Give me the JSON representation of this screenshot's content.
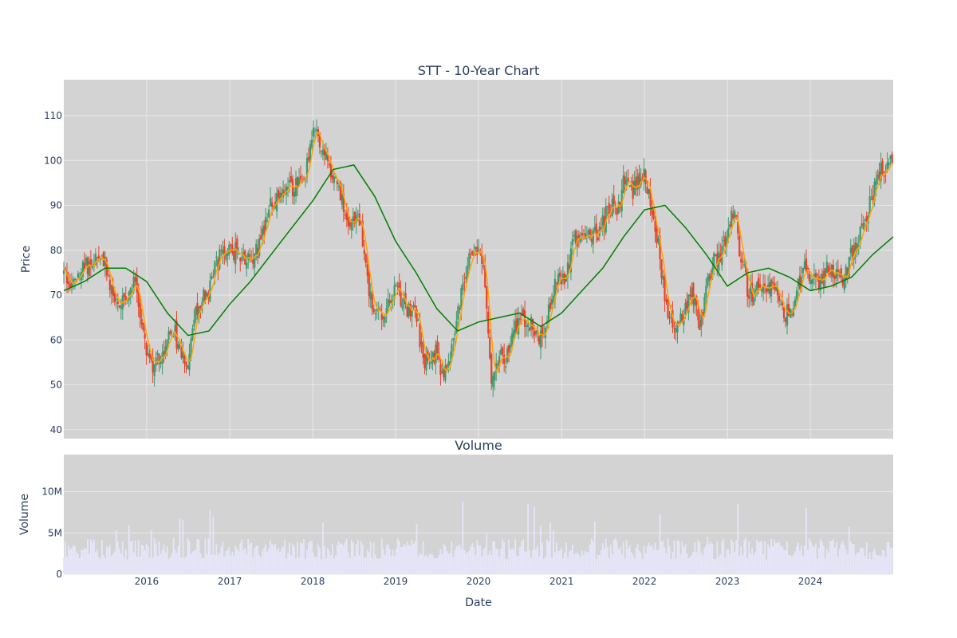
{
  "chart_data": {
    "type": "candlestick",
    "title": "STT - 10-Year Chart",
    "subplot_titles": [
      "",
      "Volume"
    ],
    "xlabel": "Date",
    "price_ylabel": "Price",
    "volume_ylabel": "Volume",
    "x_range": [
      "2015-01-01",
      "2024-12-31"
    ],
    "price_ylim": [
      38,
      118
    ],
    "volume_ylim": [
      0,
      14500000
    ],
    "x_ticks": [
      "2016",
      "2017",
      "2018",
      "2019",
      "2020",
      "2021",
      "2022",
      "2023",
      "2024"
    ],
    "price_ticks": [
      40,
      50,
      60,
      70,
      80,
      90,
      100,
      110
    ],
    "volume_ticks": [
      {
        "value": 0,
        "label": "0"
      },
      {
        "value": 5000000,
        "label": "5M"
      },
      {
        "value": 10000000,
        "label": "10M"
      }
    ],
    "grid": true,
    "colors": {
      "plot_bg": "#d3d3d3",
      "grid": "#e8e8e8",
      "up": "#3d9970",
      "down": "#e8412b",
      "ma_short": "#ffa500",
      "ma_long": "#008000",
      "volume": "#e6e6fa",
      "text": "#2a3f5f"
    },
    "series": [
      {
        "name": "close",
        "points": [
          [
            "2015-01-01",
            75
          ],
          [
            "2015-02-01",
            73
          ],
          [
            "2015-03-01",
            75
          ],
          [
            "2015-04-01",
            76
          ],
          [
            "2015-05-01",
            77
          ],
          [
            "2015-06-01",
            79
          ],
          [
            "2015-07-01",
            78
          ],
          [
            "2015-08-01",
            71
          ],
          [
            "2015-09-01",
            68
          ],
          [
            "2015-10-01",
            70
          ],
          [
            "2015-11-01",
            73
          ],
          [
            "2015-12-01",
            67
          ],
          [
            "2016-01-01",
            57
          ],
          [
            "2016-02-01",
            54
          ],
          [
            "2016-03-01",
            57
          ],
          [
            "2016-04-01",
            60
          ],
          [
            "2016-05-01",
            62
          ],
          [
            "2016-06-01",
            55
          ],
          [
            "2016-07-01",
            55
          ],
          [
            "2016-08-01",
            67
          ],
          [
            "2016-09-01",
            69
          ],
          [
            "2016-10-01",
            70
          ],
          [
            "2016-11-01",
            77
          ],
          [
            "2016-12-01",
            79
          ],
          [
            "2017-01-01",
            80
          ],
          [
            "2017-02-01",
            80
          ],
          [
            "2017-03-01",
            79
          ],
          [
            "2017-04-01",
            78
          ],
          [
            "2017-05-01",
            80
          ],
          [
            "2017-06-01",
            84
          ],
          [
            "2017-07-01",
            90
          ],
          [
            "2017-08-01",
            92
          ],
          [
            "2017-09-01",
            95
          ],
          [
            "2017-10-01",
            93
          ],
          [
            "2017-11-01",
            96
          ],
          [
            "2017-12-01",
            98
          ],
          [
            "2018-01-01",
            108
          ],
          [
            "2018-02-01",
            104
          ],
          [
            "2018-03-01",
            100
          ],
          [
            "2018-04-01",
            96
          ],
          [
            "2018-05-01",
            93
          ],
          [
            "2018-06-01",
            88
          ],
          [
            "2018-07-01",
            86
          ],
          [
            "2018-08-01",
            86
          ],
          [
            "2018-09-01",
            72
          ],
          [
            "2018-10-01",
            67
          ],
          [
            "2018-11-01",
            65
          ],
          [
            "2018-12-01",
            70
          ],
          [
            "2019-01-01",
            71
          ],
          [
            "2019-02-01",
            68
          ],
          [
            "2019-03-01",
            66
          ],
          [
            "2019-04-01",
            66
          ],
          [
            "2019-05-01",
            56
          ],
          [
            "2019-06-01",
            55
          ],
          [
            "2019-07-01",
            57
          ],
          [
            "2019-08-01",
            51
          ],
          [
            "2019-09-01",
            58
          ],
          [
            "2019-10-01",
            66
          ],
          [
            "2019-11-01",
            74
          ],
          [
            "2019-12-01",
            79
          ],
          [
            "2020-01-01",
            80
          ],
          [
            "2020-02-01",
            73
          ],
          [
            "2020-03-01",
            50
          ],
          [
            "2020-04-01",
            58
          ],
          [
            "2020-05-01",
            56
          ],
          [
            "2020-06-01",
            62
          ],
          [
            "2020-07-01",
            65
          ],
          [
            "2020-08-01",
            65
          ],
          [
            "2020-09-01",
            63
          ],
          [
            "2020-10-01",
            60
          ],
          [
            "2020-11-01",
            66
          ],
          [
            "2020-12-01",
            72
          ],
          [
            "2021-01-01",
            73
          ],
          [
            "2021-02-01",
            76
          ],
          [
            "2021-03-01",
            83
          ],
          [
            "2021-04-01",
            84
          ],
          [
            "2021-05-01",
            84
          ],
          [
            "2021-06-01",
            83
          ],
          [
            "2021-07-01",
            86
          ],
          [
            "2021-08-01",
            90
          ],
          [
            "2021-09-01",
            88
          ],
          [
            "2021-10-01",
            95
          ],
          [
            "2021-11-01",
            93
          ],
          [
            "2021-12-01",
            95
          ],
          [
            "2022-01-01",
            97
          ],
          [
            "2022-02-01",
            88
          ],
          [
            "2022-03-01",
            82
          ],
          [
            "2022-04-01",
            69
          ],
          [
            "2022-05-01",
            65
          ],
          [
            "2022-06-01",
            63
          ],
          [
            "2022-07-01",
            68
          ],
          [
            "2022-08-01",
            70
          ],
          [
            "2022-09-01",
            62
          ],
          [
            "2022-10-01",
            72
          ],
          [
            "2022-11-01",
            78
          ],
          [
            "2022-12-01",
            78
          ],
          [
            "2023-01-01",
            83
          ],
          [
            "2023-02-01",
            90
          ],
          [
            "2023-03-01",
            78
          ],
          [
            "2023-04-01",
            71
          ],
          [
            "2023-05-01",
            70
          ],
          [
            "2023-06-01",
            73
          ],
          [
            "2023-07-01",
            72
          ],
          [
            "2023-08-01",
            70
          ],
          [
            "2023-09-01",
            66
          ],
          [
            "2023-10-01",
            66
          ],
          [
            "2023-11-01",
            70
          ],
          [
            "2023-12-01",
            77
          ],
          [
            "2024-01-01",
            75
          ],
          [
            "2024-02-01",
            73
          ],
          [
            "2024-03-01",
            75
          ],
          [
            "2024-04-01",
            76
          ],
          [
            "2024-05-01",
            74
          ],
          [
            "2024-06-01",
            73
          ],
          [
            "2024-07-01",
            80
          ],
          [
            "2024-08-01",
            83
          ],
          [
            "2024-09-01",
            87
          ],
          [
            "2024-10-01",
            92
          ],
          [
            "2024-11-01",
            97
          ],
          [
            "2024-12-01",
            99
          ]
        ]
      },
      {
        "name": "ma_long",
        "points": [
          [
            "2015-01-01",
            71
          ],
          [
            "2015-04-01",
            73
          ],
          [
            "2015-07-01",
            76
          ],
          [
            "2015-10-01",
            76
          ],
          [
            "2016-01-01",
            73
          ],
          [
            "2016-04-01",
            66
          ],
          [
            "2016-07-01",
            61
          ],
          [
            "2016-10-01",
            62
          ],
          [
            "2017-01-01",
            68
          ],
          [
            "2017-04-01",
            73
          ],
          [
            "2017-07-01",
            79
          ],
          [
            "2017-10-01",
            85
          ],
          [
            "2018-01-01",
            91
          ],
          [
            "2018-04-01",
            98
          ],
          [
            "2018-07-01",
            99
          ],
          [
            "2018-10-01",
            92
          ],
          [
            "2019-01-01",
            82
          ],
          [
            "2019-04-01",
            75
          ],
          [
            "2019-07-01",
            67
          ],
          [
            "2019-10-01",
            62
          ],
          [
            "2020-01-01",
            64
          ],
          [
            "2020-04-01",
            65
          ],
          [
            "2020-07-01",
            66
          ],
          [
            "2020-10-01",
            63
          ],
          [
            "2021-01-01",
            66
          ],
          [
            "2021-04-01",
            71
          ],
          [
            "2021-07-01",
            76
          ],
          [
            "2021-10-01",
            83
          ],
          [
            "2022-01-01",
            89
          ],
          [
            "2022-04-01",
            90
          ],
          [
            "2022-07-01",
            85
          ],
          [
            "2022-10-01",
            79
          ],
          [
            "2023-01-01",
            72
          ],
          [
            "2023-04-01",
            75
          ],
          [
            "2023-07-01",
            76
          ],
          [
            "2023-10-01",
            74
          ],
          [
            "2024-01-01",
            71
          ],
          [
            "2024-04-01",
            72
          ],
          [
            "2024-07-01",
            74
          ],
          [
            "2024-10-01",
            79
          ],
          [
            "2024-12-31",
            83
          ]
        ]
      }
    ]
  }
}
